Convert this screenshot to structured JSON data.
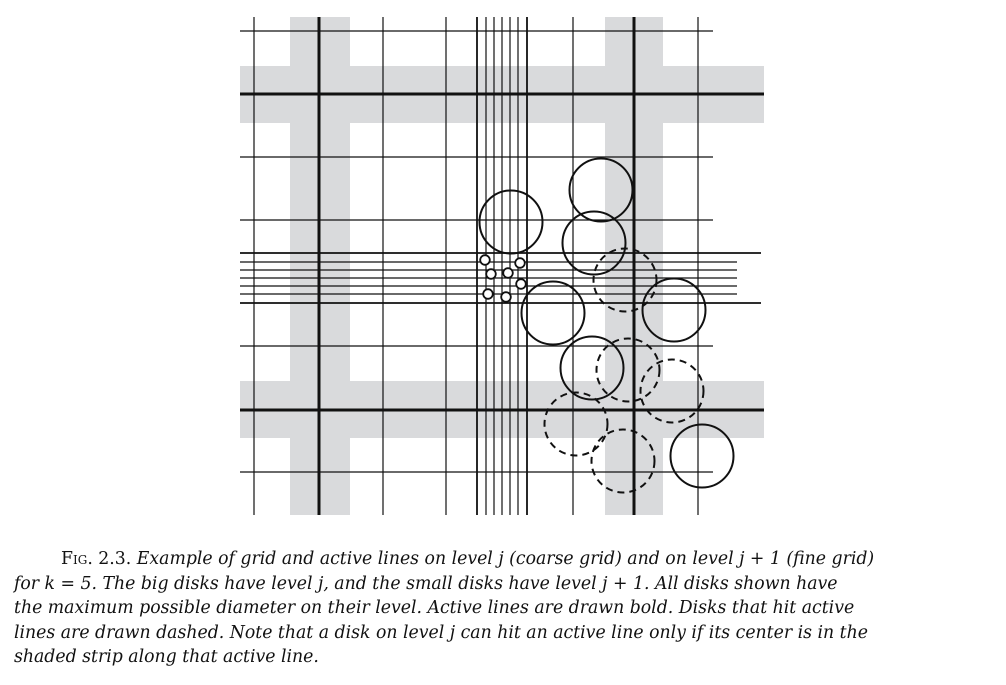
{
  "figure": {
    "caption": {
      "label": "Fig. 2.3.",
      "lines": [
        "Example of grid and active lines on level j (coarse grid) and on level j + 1 (fine grid)",
        "for k = 5.  The big disks have level j, and the small disks have level j + 1.  All disks shown have",
        "the maximum possible diameter on their level.  Active lines are drawn bold.  Disks that hit active",
        "lines are drawn dashed.  Note that a disk on level j can hit an active line only if its center is in the",
        "shaded strip along that active line."
      ]
    },
    "colors": {
      "shaded_strip": "#d9dadc",
      "line": "#111111",
      "background": "#ffffff"
    }
  }
}
